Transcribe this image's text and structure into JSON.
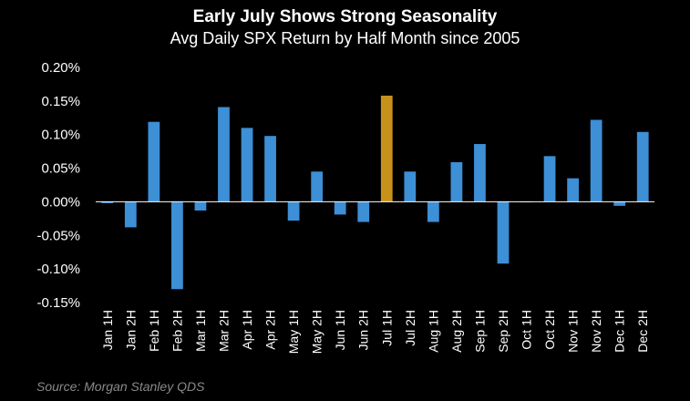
{
  "chart_data": {
    "type": "bar",
    "title": "Early July Shows Strong Seasonality",
    "subtitle": "Avg Daily SPX  Return by Half Month since 2005",
    "source": "Source: Morgan Stanley QDS",
    "ylim": [
      -0.15,
      0.2
    ],
    "yticks": [
      0.2,
      0.15,
      0.1,
      0.05,
      0.0,
      -0.05,
      -0.1,
      -0.15
    ],
    "ytick_labels": [
      "0.20%",
      "0.15%",
      "0.10%",
      "0.05%",
      "0.00%",
      "-0.05%",
      "-0.10%",
      "-0.15%"
    ],
    "categories": [
      "Jan 1H",
      "Jan 2H",
      "Feb 1H",
      "Feb 2H",
      "Mar 1H",
      "Mar 2H",
      "Apr 1H",
      "Apr 2H",
      "May 1H",
      "May 2H",
      "Jun 1H",
      "Jun 2H",
      "Jul 1H",
      "Jul 2H",
      "Aug 1H",
      "Aug 2H",
      "Sep 1H",
      "Sep 2H",
      "Oct 1H",
      "Oct 2H",
      "Nov 1H",
      "Nov 2H",
      "Dec 1H",
      "Dec 2H"
    ],
    "values": [
      -0.002,
      -0.038,
      0.119,
      -0.13,
      -0.013,
      0.141,
      0.11,
      0.098,
      -0.028,
      0.045,
      -0.019,
      -0.03,
      0.158,
      0.045,
      -0.03,
      0.059,
      0.086,
      -0.092,
      0.0,
      0.068,
      0.035,
      0.122,
      -0.006,
      0.104
    ],
    "highlight_index": 12,
    "colors": {
      "bar": "#3d8fd6",
      "highlight": "#c8911a",
      "axis": "#ffffff",
      "source_text": "#8a8a8a"
    },
    "grid": false
  }
}
